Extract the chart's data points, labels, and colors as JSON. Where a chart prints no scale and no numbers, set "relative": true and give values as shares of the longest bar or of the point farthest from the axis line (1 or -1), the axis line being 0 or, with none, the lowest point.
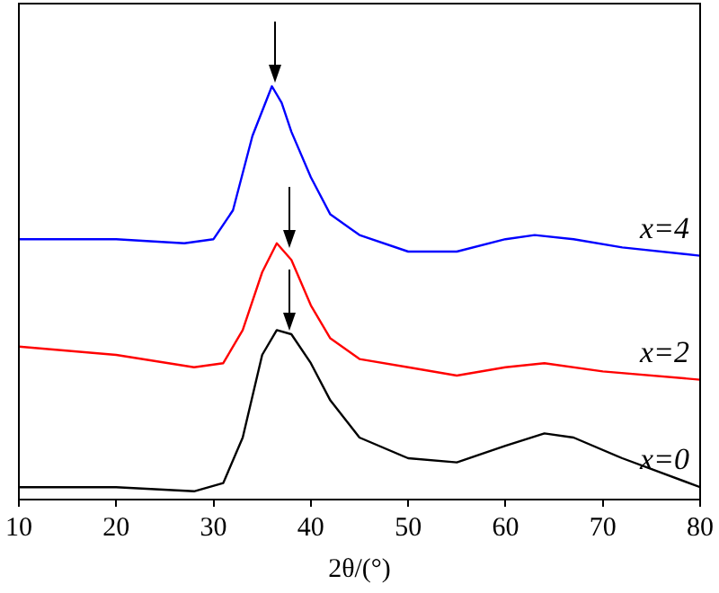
{
  "chart_data": {
    "type": "line",
    "xlabel": "2θ/(°)",
    "relative": true,
    "xlim": [
      10,
      80
    ],
    "xticks": [
      10,
      20,
      30,
      40,
      50,
      60,
      70,
      80
    ],
    "grid": false,
    "legend": false,
    "marker": "none",
    "series": [
      {
        "name": "x=4",
        "color": "#0000ff",
        "x": [
          10,
          20,
          27,
          30,
          32,
          34,
          36,
          37,
          38,
          40,
          42,
          45,
          50,
          55,
          60,
          63,
          67,
          72,
          80
        ],
        "values": [
          0.63,
          0.63,
          0.62,
          0.63,
          0.7,
          0.88,
          1,
          0.96,
          0.89,
          0.78,
          0.69,
          0.64,
          0.6,
          0.6,
          0.63,
          0.64,
          0.63,
          0.61,
          0.59
        ]
      },
      {
        "name": "x=2",
        "color": "#ff0000",
        "x": [
          10,
          20,
          28,
          31,
          33,
          35,
          36.5,
          38,
          40,
          42,
          45,
          50,
          55,
          60,
          64,
          70,
          80
        ],
        "values": [
          0.37,
          0.35,
          0.32,
          0.33,
          0.41,
          0.55,
          0.62,
          0.58,
          0.47,
          0.39,
          0.34,
          0.32,
          0.3,
          0.32,
          0.33,
          0.31,
          0.29
        ]
      },
      {
        "name": "x=0",
        "color": "#000000",
        "x": [
          10,
          20,
          28,
          31,
          33,
          35,
          36.5,
          38,
          40,
          42,
          45,
          50,
          55,
          60,
          64,
          67,
          72,
          80
        ],
        "values": [
          0.03,
          0.03,
          0.02,
          0.04,
          0.15,
          0.35,
          0.41,
          0.4,
          0.33,
          0.24,
          0.15,
          0.1,
          0.09,
          0.13,
          0.16,
          0.15,
          0.1,
          0.03
        ]
      }
    ]
  }
}
